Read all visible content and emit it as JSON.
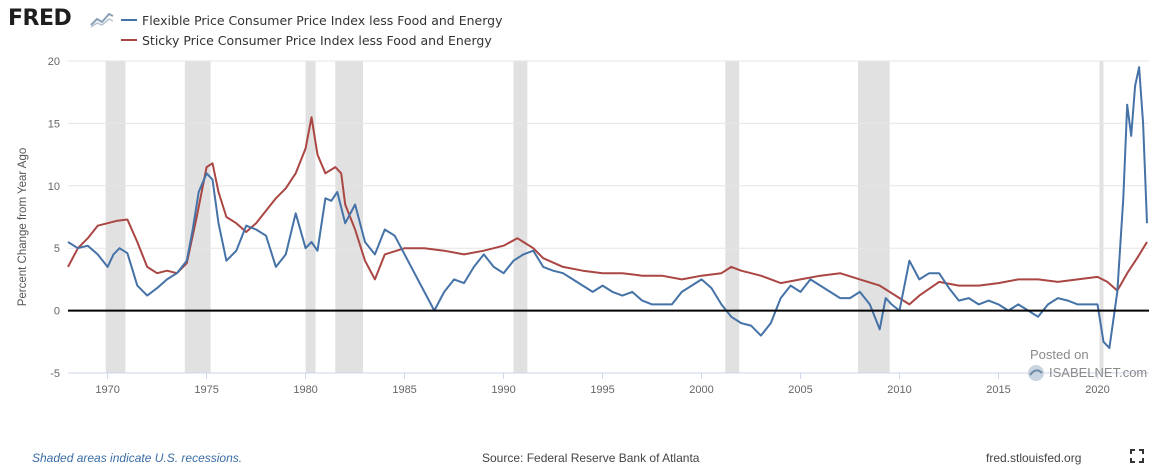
{
  "header": {
    "logo_text": "FRED"
  },
  "footer": {
    "recessions_note": "Shaded areas indicate U.S. recessions.",
    "source": "Source: Federal Reserve Bank of Atlanta",
    "site": "fred.stlouisfed.org"
  },
  "watermark": {
    "line1": "Posted on",
    "line2": "ISABELNET.com"
  },
  "colors": {
    "flexible": "#4572a7",
    "sticky": "#aa4643",
    "recession": "#e1e1e1",
    "zero_line": "#000000"
  },
  "chart_data": {
    "type": "line",
    "title": "",
    "xlabel": "",
    "ylabel": "Percent Change from Year Ago",
    "xlim": [
      1968.0,
      2022.6
    ],
    "ylim": [
      -5,
      20
    ],
    "yticks": [
      -5,
      0,
      5,
      10,
      15,
      20
    ],
    "xticks": [
      1970,
      1975,
      1980,
      1985,
      1990,
      1995,
      2000,
      2005,
      2010,
      2015,
      2020
    ],
    "grid": true,
    "legend_position": "top-left",
    "recessions": [
      [
        1969.9,
        1970.9
      ],
      [
        1973.9,
        1975.2
      ],
      [
        1980.0,
        1980.5
      ],
      [
        1981.5,
        1982.9
      ],
      [
        1990.5,
        1991.2
      ],
      [
        2001.2,
        2001.9
      ],
      [
        2007.9,
        2009.5
      ],
      [
        2020.1,
        2020.3
      ]
    ],
    "series": [
      {
        "name": "Flexible Price Consumer Price Index less Food and Energy",
        "x": [
          1968.0,
          1968.5,
          1969.0,
          1969.5,
          1970.0,
          1970.3,
          1970.6,
          1971.0,
          1971.5,
          1972.0,
          1972.5,
          1973.0,
          1973.5,
          1974.0,
          1974.3,
          1974.6,
          1975.0,
          1975.3,
          1975.6,
          1976.0,
          1976.5,
          1977.0,
          1977.5,
          1978.0,
          1978.5,
          1979.0,
          1979.5,
          1980.0,
          1980.3,
          1980.6,
          1981.0,
          1981.3,
          1981.6,
          1982.0,
          1982.5,
          1983.0,
          1983.5,
          1984.0,
          1984.5,
          1985.0,
          1985.5,
          1986.0,
          1986.5,
          1987.0,
          1987.5,
          1988.0,
          1988.5,
          1989.0,
          1989.5,
          1990.0,
          1990.5,
          1991.0,
          1991.5,
          1992.0,
          1992.5,
          1993.0,
          1993.5,
          1994.0,
          1994.5,
          1995.0,
          1995.5,
          1996.0,
          1996.5,
          1997.0,
          1997.5,
          1998.0,
          1998.5,
          1999.0,
          1999.5,
          2000.0,
          2000.5,
          2001.0,
          2001.5,
          2002.0,
          2002.5,
          2003.0,
          2003.5,
          2004.0,
          2004.5,
          2005.0,
          2005.5,
          2006.0,
          2006.5,
          2007.0,
          2007.5,
          2008.0,
          2008.5,
          2009.0,
          2009.3,
          2009.6,
          2010.0,
          2010.5,
          2011.0,
          2011.5,
          2012.0,
          2012.5,
          2013.0,
          2013.5,
          2014.0,
          2014.5,
          2015.0,
          2015.5,
          2016.0,
          2016.5,
          2017.0,
          2017.5,
          2018.0,
          2018.5,
          2019.0,
          2019.5,
          2020.0,
          2020.3,
          2020.6,
          2021.0,
          2021.3,
          2021.5,
          2021.7,
          2021.9,
          2022.1,
          2022.3,
          2022.5
        ],
        "y": [
          5.5,
          5.0,
          5.2,
          4.5,
          3.5,
          4.5,
          5.0,
          4.6,
          2.0,
          1.2,
          1.8,
          2.5,
          3.0,
          4.0,
          6.5,
          9.5,
          11.0,
          10.5,
          7.0,
          4.0,
          4.8,
          6.8,
          6.5,
          6.0,
          3.5,
          4.5,
          7.8,
          5.0,
          5.5,
          4.8,
          9.0,
          8.8,
          9.5,
          7.0,
          8.5,
          5.5,
          4.5,
          6.5,
          6.0,
          4.5,
          3.0,
          1.5,
          0.0,
          1.5,
          2.5,
          2.2,
          3.5,
          4.5,
          3.5,
          3.0,
          4.0,
          4.5,
          4.8,
          3.5,
          3.2,
          3.0,
          2.5,
          2.0,
          1.5,
          2.0,
          1.5,
          1.2,
          1.5,
          0.8,
          0.5,
          0.5,
          0.5,
          1.5,
          2.0,
          2.5,
          1.8,
          0.5,
          -0.5,
          -1.0,
          -1.2,
          -2.0,
          -1.0,
          1.0,
          2.0,
          1.5,
          2.5,
          2.0,
          1.5,
          1.0,
          1.0,
          1.5,
          0.5,
          -1.5,
          1.0,
          0.5,
          0.0,
          4.0,
          2.5,
          3.0,
          3.0,
          1.8,
          0.8,
          1.0,
          0.5,
          0.8,
          0.5,
          0.0,
          0.5,
          0.0,
          -0.5,
          0.5,
          1.0,
          0.8,
          0.5,
          0.5,
          0.5,
          -2.5,
          -3.0,
          1.5,
          9.0,
          16.5,
          14.0,
          18.0,
          19.5,
          15.0,
          7.0
        ]
      },
      {
        "name": "Sticky Price Consumer Price Index less Food and Energy",
        "x": [
          1968.0,
          1968.5,
          1969.0,
          1969.5,
          1970.0,
          1970.5,
          1971.0,
          1971.5,
          1972.0,
          1972.5,
          1973.0,
          1973.5,
          1974.0,
          1974.5,
          1975.0,
          1975.3,
          1975.6,
          1976.0,
          1976.5,
          1977.0,
          1977.5,
          1978.0,
          1978.5,
          1979.0,
          1979.5,
          1980.0,
          1980.3,
          1980.6,
          1981.0,
          1981.5,
          1981.8,
          1982.0,
          1982.5,
          1983.0,
          1983.5,
          1984.0,
          1985.0,
          1986.0,
          1987.0,
          1988.0,
          1989.0,
          1990.0,
          1990.7,
          1991.0,
          1991.5,
          1992.0,
          1993.0,
          1994.0,
          1995.0,
          1996.0,
          1997.0,
          1998.0,
          1999.0,
          2000.0,
          2001.0,
          2001.5,
          2002.0,
          2003.0,
          2004.0,
          2005.0,
          2006.0,
          2007.0,
          2008.0,
          2009.0,
          2010.0,
          2010.5,
          2011.0,
          2012.0,
          2013.0,
          2014.0,
          2015.0,
          2016.0,
          2017.0,
          2018.0,
          2019.0,
          2020.0,
          2020.5,
          2021.0,
          2021.5,
          2022.0,
          2022.5
        ],
        "y": [
          3.5,
          5.0,
          5.8,
          6.8,
          7.0,
          7.2,
          7.3,
          5.5,
          3.5,
          3.0,
          3.2,
          3.0,
          3.8,
          7.5,
          11.5,
          11.8,
          9.5,
          7.5,
          7.0,
          6.3,
          7.0,
          8.0,
          9.0,
          9.8,
          11.0,
          13.0,
          15.5,
          12.5,
          11.0,
          11.5,
          11.0,
          8.5,
          6.5,
          4.0,
          2.5,
          4.5,
          5.0,
          5.0,
          4.8,
          4.5,
          4.8,
          5.2,
          5.8,
          5.5,
          5.0,
          4.2,
          3.5,
          3.2,
          3.0,
          3.0,
          2.8,
          2.8,
          2.5,
          2.8,
          3.0,
          3.5,
          3.2,
          2.8,
          2.2,
          2.5,
          2.8,
          3.0,
          2.5,
          2.0,
          1.0,
          0.5,
          1.2,
          2.3,
          2.0,
          2.0,
          2.2,
          2.5,
          2.5,
          2.3,
          2.5,
          2.7,
          2.3,
          1.6,
          3.0,
          4.2,
          5.5
        ]
      }
    ]
  }
}
